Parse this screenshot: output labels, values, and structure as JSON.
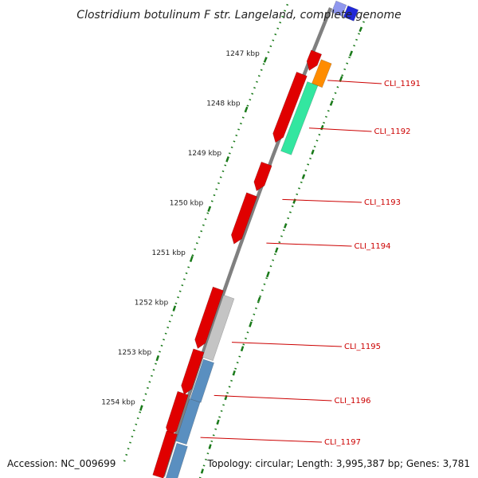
{
  "title": "Clostridium botulinum F str. Langeland, complete genome",
  "accession": "Accession: NC_009699",
  "topology": "Topology: circular; Length: 3,995,387 bp; Genes: 3,781",
  "colors": {
    "backbone": "#808080",
    "tick": "#1a7a1a",
    "gene_red": "#e00000",
    "gene_blue": "#5a8fc0",
    "gene_green": "#33e6a0",
    "gene_orange": "#ff8c00",
    "gene_grey": "#c4c4c4",
    "label": "#cc0000"
  },
  "kbp_ticks": [
    {
      "text": "1247 kbp"
    },
    {
      "text": "1248 kbp"
    },
    {
      "text": "1249 kbp"
    },
    {
      "text": "1250 kbp"
    },
    {
      "text": "1251 kbp"
    },
    {
      "text": "1252 kbp"
    },
    {
      "text": "1253 kbp"
    },
    {
      "text": "1254 kbp"
    }
  ],
  "gene_labels": [
    {
      "text": "CLI_1191"
    },
    {
      "text": "CLI_1192"
    },
    {
      "text": "CLI_1193"
    },
    {
      "text": "CLI_1194"
    },
    {
      "text": "CLI_1195"
    },
    {
      "text": "CLI_1196"
    },
    {
      "text": "CLI_1197"
    }
  ]
}
